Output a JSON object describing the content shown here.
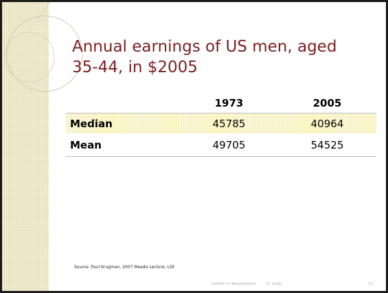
{
  "title": [
    "Annual earnings of US men, aged",
    "35-44, in $2005"
  ],
  "table": {
    "header": [
      "1973",
      "2005"
    ],
    "rows": [
      [
        "Median",
        "45785",
        "40964"
      ],
      [
        "Mean",
        "49705",
        "54525"
      ]
    ]
  },
  "source": "Source:  Paul Krugman, 2007 Meade Lecture, LSE",
  "footer": {
    "left": "Growth in development",
    "author": "D. Quah",
    "page": "13"
  }
}
